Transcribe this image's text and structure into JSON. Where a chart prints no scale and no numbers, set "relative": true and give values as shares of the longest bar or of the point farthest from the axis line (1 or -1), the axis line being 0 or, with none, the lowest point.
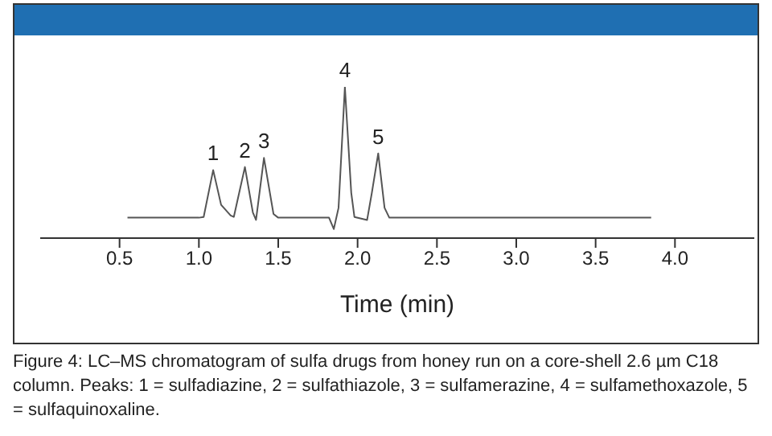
{
  "chart_data": {
    "type": "line",
    "relative": true,
    "xlabel": "Time (min)",
    "x": [
      0.55,
      1.0,
      1.03,
      1.09,
      1.14,
      1.2,
      1.22,
      1.29,
      1.34,
      1.36,
      1.41,
      1.47,
      1.5,
      1.82,
      1.85,
      1.88,
      1.92,
      1.96,
      1.98,
      2.06,
      2.09,
      2.13,
      2.17,
      2.2,
      3.85
    ],
    "series": [
      {
        "color": "#555555",
        "values": [
          0.135,
          0.135,
          0.14,
          0.45,
          0.22,
          0.15,
          0.14,
          0.47,
          0.17,
          0.12,
          0.53,
          0.16,
          0.135,
          0.135,
          0.06,
          0.2,
          1,
          0.3,
          0.14,
          0.12,
          0.3,
          0.56,
          0.2,
          0.135,
          0.135
        ]
      }
    ],
    "xlim": [
      0,
      4.5
    ],
    "xticks": [
      0.5,
      {
        "value": 1,
        "label": "1.0"
      },
      1.5,
      {
        "value": 2,
        "label": "2.0"
      },
      2.5,
      {
        "value": 3,
        "label": "3.0"
      },
      3.5,
      {
        "value": 4,
        "label": "4.0"
      }
    ],
    "grid": false,
    "legend": false,
    "marker": "none",
    "line_style": "solid",
    "annotations": [
      {
        "text": "1",
        "x": 1.09,
        "y": 0.45
      },
      {
        "text": "2",
        "x": 1.29,
        "y": 0.47
      },
      {
        "text": "3",
        "x": 1.41,
        "y": 0.53
      },
      {
        "text": "4",
        "x": 1.92,
        "y": 1
      },
      {
        "text": "5",
        "x": 2.13,
        "y": 0.56
      },
      "Figure 4: LC–MS chromatogram of sulfa drugs from honey run on a core-shell 2.6 µm C18 column. Peaks: 1 = sulfadiazine, 2 = sulfathiazole, 3 = sulfamerazine, 4 = sulfamethoxazole, 5 = sulfaquinoxaline."
    ]
  }
}
